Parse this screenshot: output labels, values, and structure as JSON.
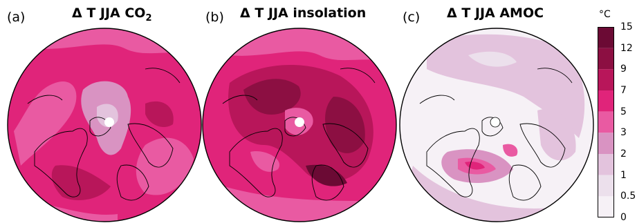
{
  "panels": [
    {
      "letter": "(a)",
      "title": "Δ T JJA CO",
      "subscript": "2"
    },
    {
      "letter": "(b)",
      "title": "Δ T JJA insolation",
      "subscript": ""
    },
    {
      "letter": "(c)",
      "title": "Δ T JJA AMOC",
      "subscript": ""
    }
  ],
  "colorbar": {
    "unit": "°C",
    "ticks": [
      "15",
      "12",
      "9",
      "7",
      "5",
      "3",
      "2",
      "1",
      "0.5",
      "0"
    ],
    "colors": [
      "#6b0a34",
      "#8c0f42",
      "#b8165a",
      "#e0247a",
      "#e95aa2",
      "#d993c2",
      "#e3c3dd",
      "#ece0ec",
      "#f6f1f6"
    ]
  }
}
